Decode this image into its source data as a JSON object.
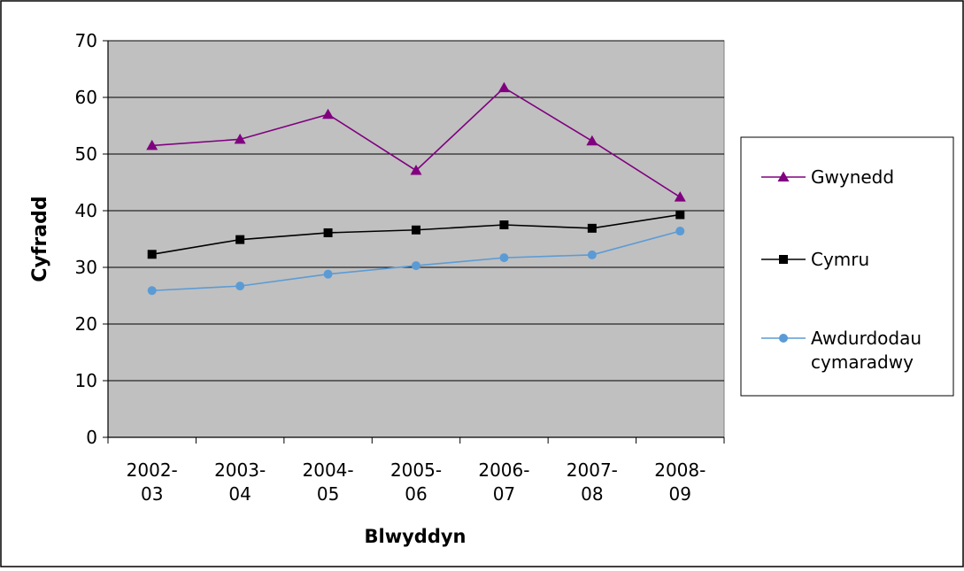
{
  "chart_data": {
    "type": "line",
    "title": "",
    "xlabel": "Blwyddyn",
    "ylabel": "Cyfradd",
    "ylim": [
      0,
      70
    ],
    "yticks": [
      0,
      10,
      20,
      30,
      40,
      50,
      60,
      70
    ],
    "categories": [
      [
        "2002-",
        "03"
      ],
      [
        "2003-",
        "04"
      ],
      [
        "2004-",
        "05"
      ],
      [
        "2005-",
        "06"
      ],
      [
        "2006-",
        "07"
      ],
      [
        "2007-",
        "08"
      ],
      [
        "2008-",
        "09"
      ]
    ],
    "grid": true,
    "legend_position": "right",
    "plot_background": "#c0c0c0",
    "series": [
      {
        "name": [
          "Gwynedd"
        ],
        "marker": "triangle",
        "color": "#800080",
        "values": [
          51.5,
          52.6,
          57.0,
          47.1,
          61.7,
          52.3,
          42.4
        ]
      },
      {
        "name": [
          "Cymru"
        ],
        "marker": "square",
        "color": "#000000",
        "values": [
          32.3,
          34.9,
          36.1,
          36.6,
          37.5,
          36.9,
          39.3
        ]
      },
      {
        "name": [
          "Awdurdodau",
          "cymaradwy"
        ],
        "marker": "circle",
        "color": "#5b9bd5",
        "values": [
          25.9,
          26.7,
          28.8,
          30.3,
          31.7,
          32.2,
          36.4
        ]
      }
    ]
  }
}
